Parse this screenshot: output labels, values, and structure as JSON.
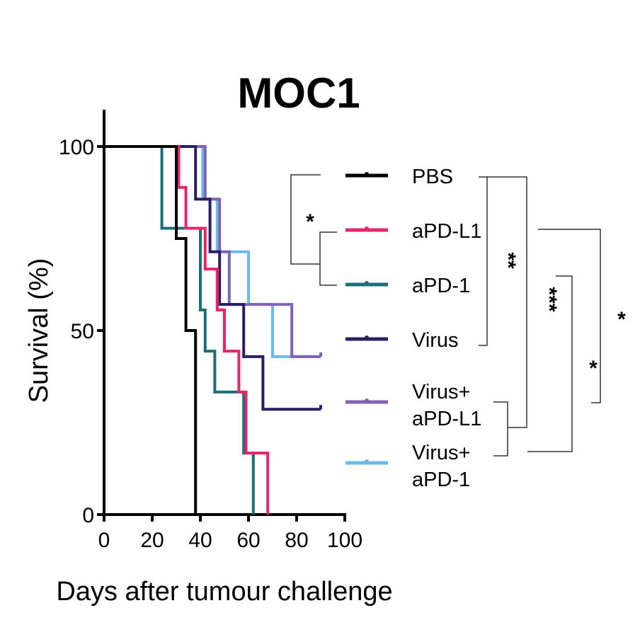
{
  "chart_data": {
    "type": "line",
    "subtype": "kaplan-meier-step",
    "title": "MOC1",
    "xlabel": "Days after tumour challenge",
    "ylabel": "Survival (%)",
    "xlim": [
      0,
      100
    ],
    "ylim": [
      0,
      100
    ],
    "xticks": [
      "0",
      "20",
      "40",
      "60",
      "80",
      "100"
    ],
    "yticks": [
      "0",
      "50",
      "100"
    ],
    "grid": false,
    "legend_position": "right",
    "series": [
      {
        "name": "PBS",
        "color": "#000000",
        "events": [
          [
            30,
            75
          ],
          [
            34,
            50
          ],
          [
            38,
            0
          ]
        ],
        "end": 38,
        "censored_end": false
      },
      {
        "name": "aPD-L1",
        "color": "#e8246a",
        "events": [
          [
            31,
            88.9
          ],
          [
            34,
            77.8
          ],
          [
            42,
            66.7
          ],
          [
            47,
            55.6
          ],
          [
            50,
            44.4
          ],
          [
            56,
            33.3
          ],
          [
            59,
            16.7
          ],
          [
            68,
            0
          ]
        ],
        "end": 68,
        "censored_end": false
      },
      {
        "name": "aPD-1",
        "color": "#1a6f7a",
        "events": [
          [
            24,
            77.8
          ],
          [
            40,
            55.6
          ],
          [
            42,
            44.4
          ],
          [
            46,
            33.3
          ],
          [
            58,
            16.7
          ],
          [
            62,
            0
          ]
        ],
        "end": 62,
        "censored_end": false
      },
      {
        "name": "Virus",
        "color": "#2a1f63",
        "events": [
          [
            38,
            85.7
          ],
          [
            44,
            71.4
          ],
          [
            48,
            57.1
          ],
          [
            58,
            42.9
          ],
          [
            66,
            28.6
          ]
        ],
        "end": 90,
        "censored_end": true
      },
      {
        "name": "Virus+ aPD-L1",
        "label_lines": [
          "Virus+",
          "aPD-L1"
        ],
        "color": "#8064b4",
        "events": [
          [
            42,
            85.7
          ],
          [
            48,
            71.4
          ],
          [
            52,
            57.1
          ],
          [
            78,
            42.9
          ]
        ],
        "end": 90,
        "censored_end": true
      },
      {
        "name": "Virus+ aPD-1",
        "label_lines": [
          "Virus+",
          "aPD-1"
        ],
        "color": "#6bbbe8",
        "events": [
          [
            41,
            85.7
          ],
          [
            47,
            71.4
          ],
          [
            60,
            57.1
          ],
          [
            70,
            42.9
          ]
        ],
        "end": 90,
        "censored_end": true
      }
    ],
    "significance": [
      {
        "label": "*",
        "comparison": [
          "PBS",
          "aPD-L1 / aPD-1"
        ]
      },
      {
        "label": "**",
        "comparison": [
          "PBS / Virus",
          "Virus+ aPD-L1 / Virus+ aPD-1"
        ]
      },
      {
        "label": "***",
        "comparison": [
          "aPD-1",
          "Virus+ aPD-1"
        ]
      },
      {
        "label": "*",
        "comparison": [
          "aPD-L1",
          "Virus+ aPD-L1"
        ]
      },
      {
        "label": "*",
        "comparison": [
          "",
          ""
        ]
      }
    ]
  }
}
